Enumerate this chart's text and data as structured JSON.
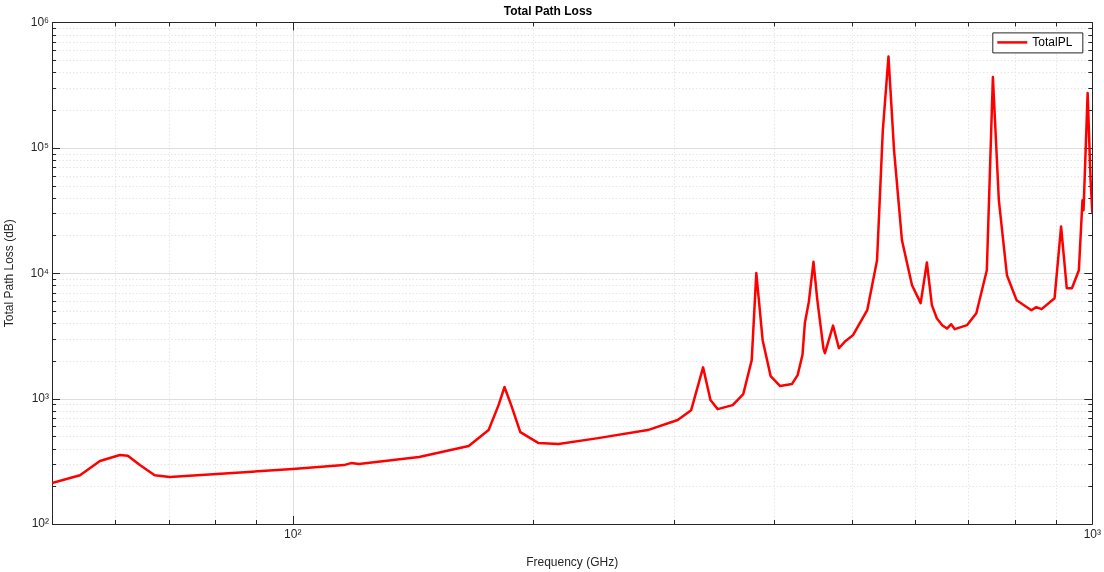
{
  "chart_data": {
    "type": "line",
    "title": "Total Path Loss",
    "xlabel": "Frequency (GHz)",
    "ylabel": "Total Path Loss (dB)",
    "log": "xy",
    "grid": true,
    "legend": "top right",
    "marker": "none",
    "line_style": "solid",
    "xlim": [
      50,
      1000
    ],
    "ylim": [
      100,
      1000000
    ],
    "xticks": [
      {
        "value": 50,
        "label": null
      },
      {
        "value": 60,
        "label": null
      },
      {
        "value": 70,
        "label": null
      },
      {
        "value": 80,
        "label": null
      },
      {
        "value": 90,
        "label": null
      },
      {
        "value": 100,
        "label": "10²"
      },
      {
        "value": 200,
        "label": null
      },
      {
        "value": 300,
        "label": null
      },
      {
        "value": 400,
        "label": null
      },
      {
        "value": 500,
        "label": null
      },
      {
        "value": 600,
        "label": null
      },
      {
        "value": 700,
        "label": null
      },
      {
        "value": 800,
        "label": null
      },
      {
        "value": 900,
        "label": null
      },
      {
        "value": 1000,
        "label": "10³"
      }
    ],
    "yticks": [
      {
        "value": 100,
        "label": "10²"
      },
      {
        "value": 200,
        "label": null
      },
      {
        "value": 300,
        "label": null
      },
      {
        "value": 400,
        "label": null
      },
      {
        "value": 500,
        "label": null
      },
      {
        "value": 600,
        "label": null
      },
      {
        "value": 700,
        "label": null
      },
      {
        "value": 800,
        "label": null
      },
      {
        "value": 900,
        "label": null
      },
      {
        "value": 1000,
        "label": "10³"
      },
      {
        "value": 2000,
        "label": null
      },
      {
        "value": 3000,
        "label": null
      },
      {
        "value": 4000,
        "label": null
      },
      {
        "value": 5000,
        "label": null
      },
      {
        "value": 6000,
        "label": null
      },
      {
        "value": 7000,
        "label": null
      },
      {
        "value": 8000,
        "label": null
      },
      {
        "value": 9000,
        "label": null
      },
      {
        "value": 10000,
        "label": "10⁴"
      },
      {
        "value": 20000,
        "label": null
      },
      {
        "value": 30000,
        "label": null
      },
      {
        "value": 40000,
        "label": null
      },
      {
        "value": 50000,
        "label": null
      },
      {
        "value": 60000,
        "label": null
      },
      {
        "value": 70000,
        "label": null
      },
      {
        "value": 80000,
        "label": null
      },
      {
        "value": 90000,
        "label": null
      },
      {
        "value": 100000,
        "label": "10⁵"
      },
      {
        "value": 200000,
        "label": null
      },
      {
        "value": 300000,
        "label": null
      },
      {
        "value": 400000,
        "label": null
      },
      {
        "value": 500000,
        "label": null
      },
      {
        "value": 600000,
        "label": null
      },
      {
        "value": 700000,
        "label": null
      },
      {
        "value": 800000,
        "label": null
      },
      {
        "value": 900000,
        "label": null
      },
      {
        "value": 1000000,
        "label": "10⁶"
      }
    ],
    "series": [
      {
        "name": "TotalPL",
        "color": "#ff0000",
        "x": [
          50,
          54.2,
          57.4,
          60.8,
          62.2,
          64.4,
          67.2,
          70.2,
          100,
          115.9,
          118.3,
          121,
          143.9,
          166,
          175.8,
          180.9,
          184,
          187.6,
          192.6,
          203,
          215,
          241,
          278,
          303,
          315,
          326,
          333,
          340,
          355,
          366,
          375,
          380,
          387,
          396,
          407,
          421,
          428,
          434,
          437,
          442,
          448,
          453,
          461,
          463,
          474,
          482,
          491,
          502,
          523,
          538,
          547,
          556,
          565,
          578,
          595,
          610,
          621,
          630,
          639,
          649,
          658,
          666,
          673,
          697,
          716,
          738,
          751,
          764,
          782,
          804,
          839,
          851,
          864,
          897,
          914,
          929,
          943,
          962,
          972,
          975,
          986.6,
          995,
          1000
        ],
        "values": [
          212,
          245,
          318,
          355,
          350,
          295,
          245,
          237,
          274,
          295,
          306,
          301,
          342,
          419,
          561,
          887,
          1236,
          887,
          541,
          442,
          434,
          484,
          561,
          675,
          809,
          1775,
          973,
          824,
          887,
          1087,
          2028,
          10020,
          2924,
          1511,
          1259,
          1306,
          1540,
          2225,
          4000,
          5880,
          12330,
          6095,
          2520,
          2306,
          3822,
          2520,
          2871,
          3208,
          5070,
          12700,
          137700,
          534500,
          95500,
          18300,
          8020,
          5770,
          12170,
          5560,
          4370,
          3850,
          3620,
          3920,
          3580,
          3850,
          4800,
          10570,
          367000,
          38200,
          9640,
          6095,
          5070,
          5360,
          5170,
          6320,
          23600,
          7590,
          7590,
          10570,
          38200,
          31800,
          273500,
          55100,
          30600
        ]
      }
    ]
  }
}
